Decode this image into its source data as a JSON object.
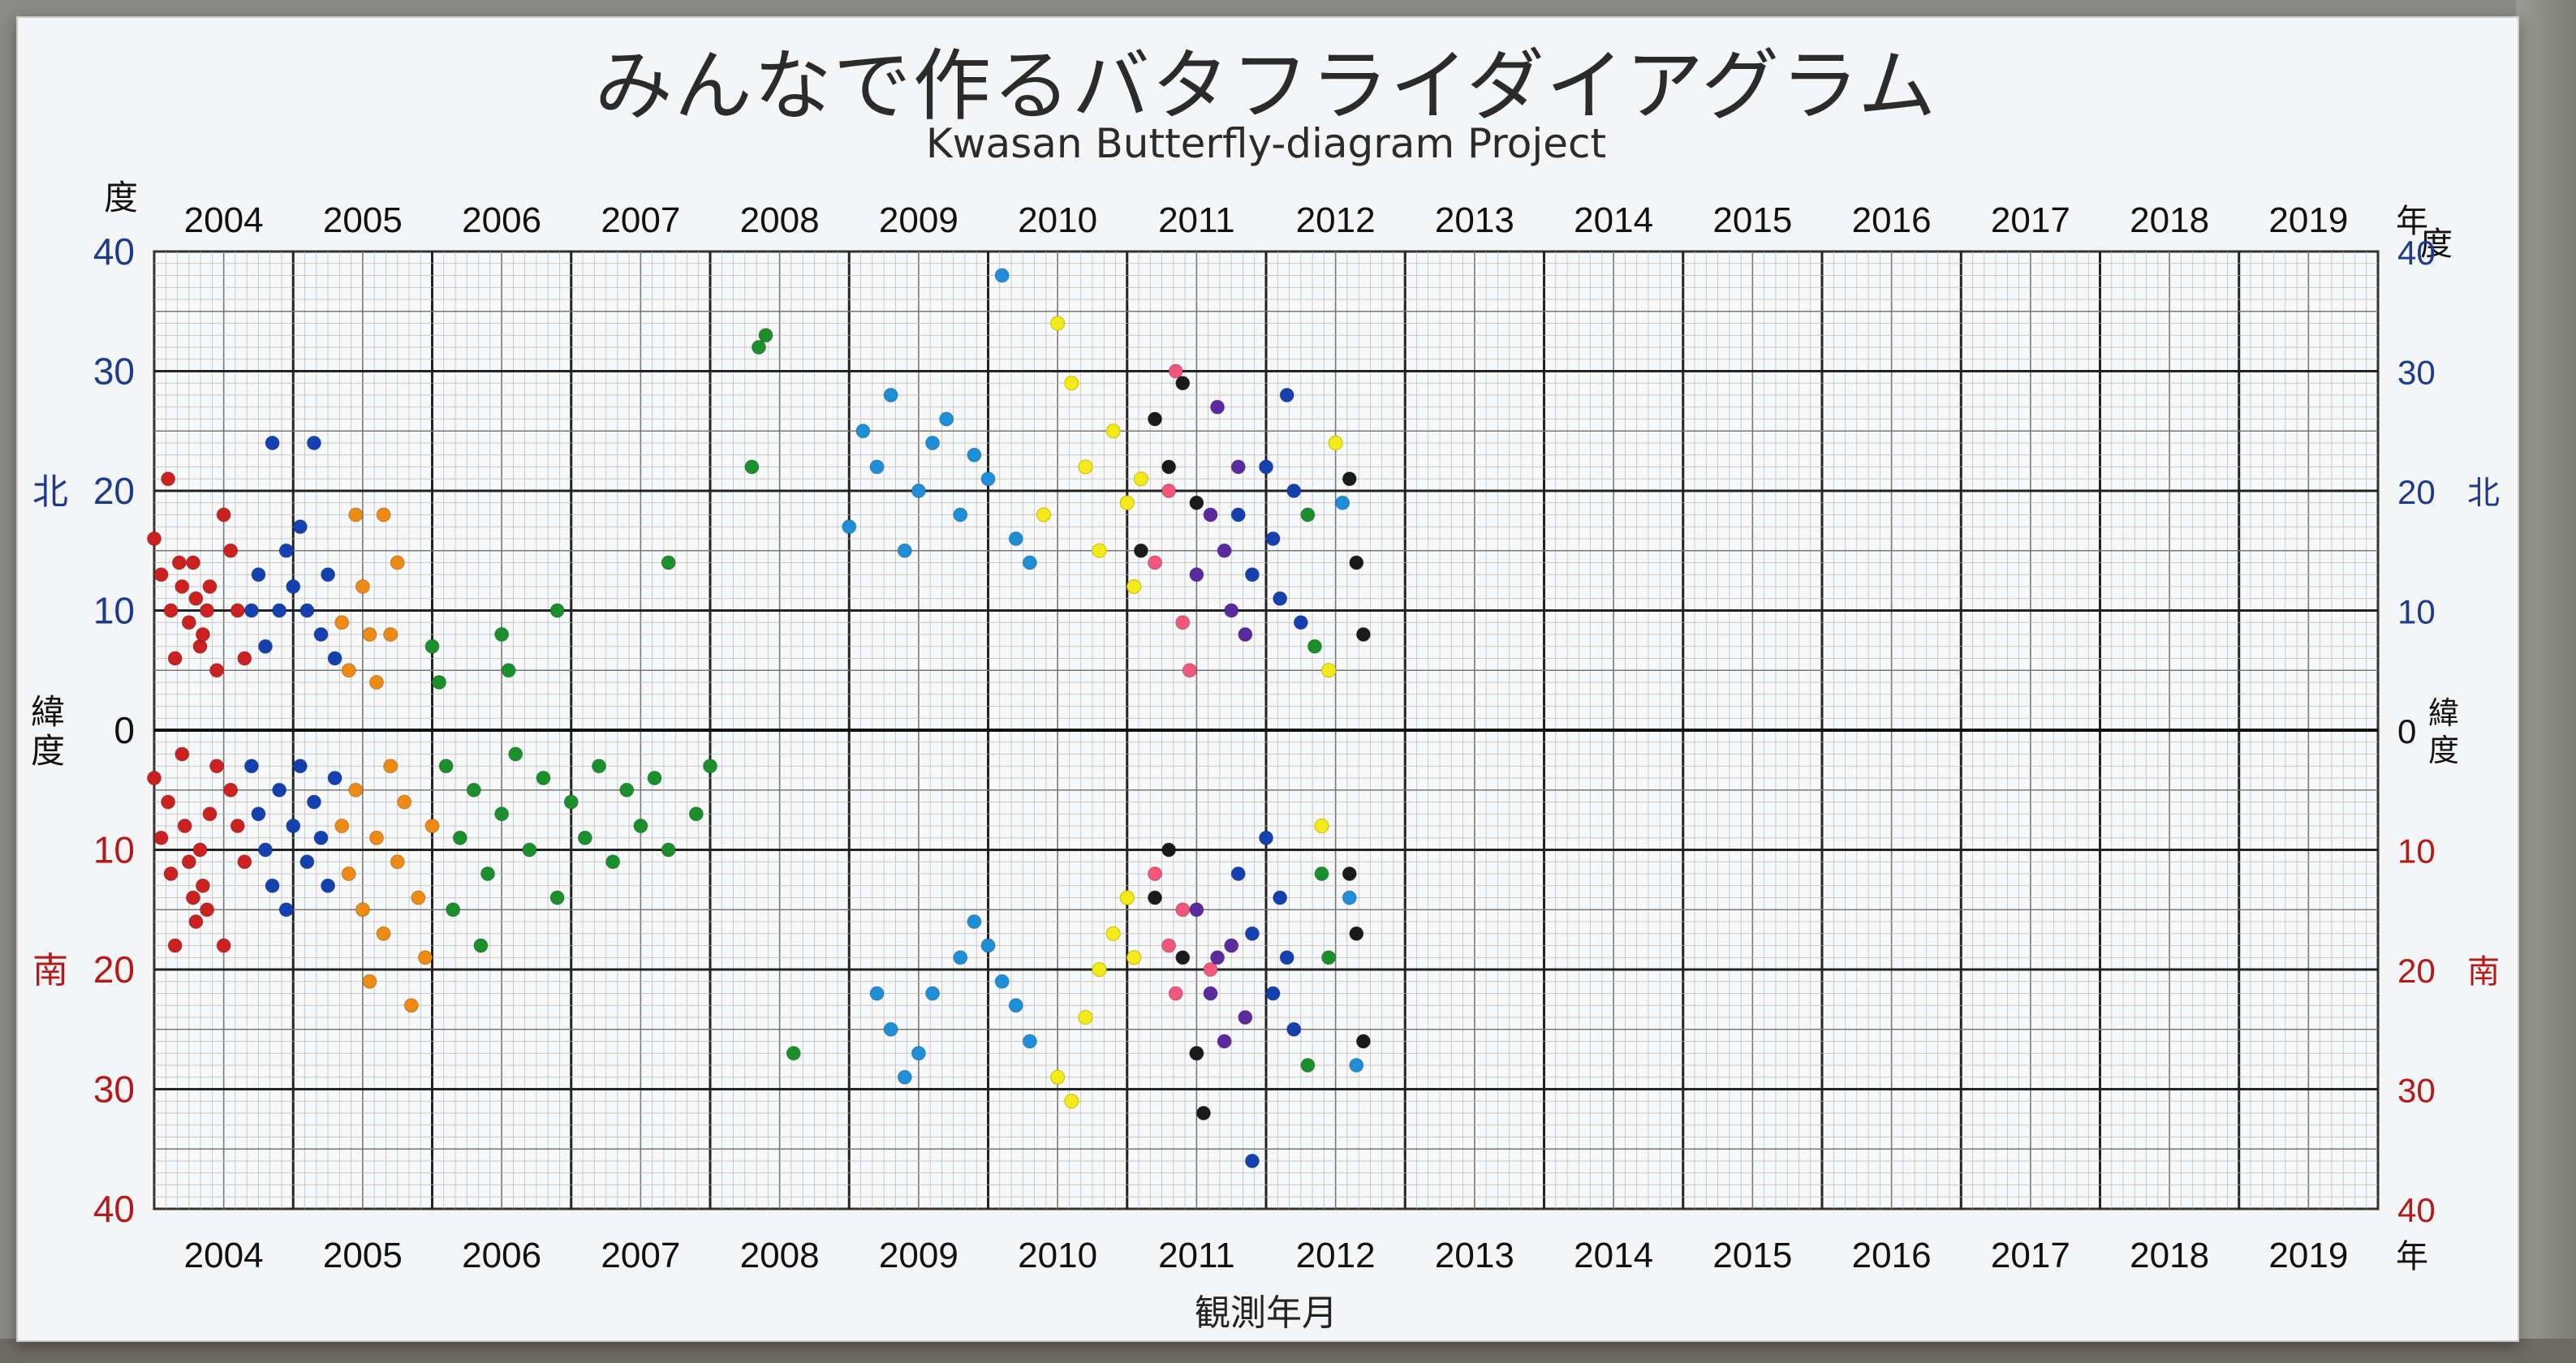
{
  "title": "みんなで作るバタフライダイアグラム",
  "subtitle": "Kwasan Butterfly-diagram Project",
  "xlabel": "観測年月",
  "unit_degree": "度",
  "unit_year": "年",
  "latitude_label": "緯度",
  "north_label": "北",
  "south_label": "南",
  "colors": {
    "north_axis": "#1e3a8a",
    "south_axis": "#b31b1b",
    "grid": "#b8b8b8",
    "series": {
      "red": "#cc2121",
      "darkblue": "#1440b0",
      "orange": "#ef8a12",
      "green": "#1a8f2c",
      "cyan": "#1e8fd6",
      "yellow": "#f2ea1a",
      "pink": "#f0577a",
      "purple": "#5b2a9e",
      "black": "#1a1a1a"
    }
  },
  "chart_data": {
    "type": "scatter",
    "title": "みんなで作るバタフライダイアグラム",
    "subtitle": "Kwasan Butterfly-diagram Project",
    "xlabel": "観測年月",
    "ylabel": "緯度",
    "x_unit": "年",
    "y_unit": "度",
    "xlim": [
      2004,
      2020
    ],
    "ylim": [
      -40,
      40
    ],
    "x_ticks": [
      "2004",
      "2005",
      "2006",
      "2007",
      "2008",
      "2009",
      "2010",
      "2011",
      "2012",
      "2013",
      "2014",
      "2015",
      "2016",
      "2017",
      "2018",
      "2019"
    ],
    "y_ticks": [
      40,
      30,
      20,
      10,
      0,
      10,
      20,
      30,
      40
    ],
    "north_tick_side": "positive latitude (北)",
    "south_tick_side": "negative latitude (南)",
    "grid": true,
    "series": [
      {
        "color": "red",
        "points": [
          [
            2004.0,
            16
          ],
          [
            2004.1,
            21
          ],
          [
            2004.05,
            13
          ],
          [
            2004.12,
            10
          ],
          [
            2004.15,
            6
          ],
          [
            2004.18,
            14
          ],
          [
            2004.2,
            12
          ],
          [
            2004.25,
            9
          ],
          [
            2004.28,
            14
          ],
          [
            2004.3,
            11
          ],
          [
            2004.33,
            7
          ],
          [
            2004.35,
            8
          ],
          [
            2004.38,
            10
          ],
          [
            2004.4,
            12
          ],
          [
            2004.45,
            5
          ],
          [
            2004.5,
            18
          ],
          [
            2004.55,
            15
          ],
          [
            2004.6,
            10
          ],
          [
            2004.65,
            6
          ],
          [
            2004.0,
            -4
          ],
          [
            2004.05,
            -9
          ],
          [
            2004.1,
            -6
          ],
          [
            2004.12,
            -12
          ],
          [
            2004.15,
            -18
          ],
          [
            2004.2,
            -2
          ],
          [
            2004.22,
            -8
          ],
          [
            2004.25,
            -11
          ],
          [
            2004.28,
            -14
          ],
          [
            2004.3,
            -16
          ],
          [
            2004.33,
            -10
          ],
          [
            2004.35,
            -13
          ],
          [
            2004.38,
            -15
          ],
          [
            2004.4,
            -7
          ],
          [
            2004.45,
            -3
          ],
          [
            2004.5,
            -18
          ],
          [
            2004.55,
            -5
          ],
          [
            2004.6,
            -8
          ],
          [
            2004.65,
            -11
          ]
        ]
      },
      {
        "color": "darkblue",
        "points": [
          [
            2004.7,
            10
          ],
          [
            2004.75,
            13
          ],
          [
            2004.8,
            7
          ],
          [
            2004.85,
            24
          ],
          [
            2004.9,
            10
          ],
          [
            2004.95,
            15
          ],
          [
            2005.0,
            12
          ],
          [
            2005.05,
            17
          ],
          [
            2005.1,
            10
          ],
          [
            2005.15,
            24
          ],
          [
            2005.2,
            8
          ],
          [
            2005.25,
            13
          ],
          [
            2005.3,
            6
          ],
          [
            2004.7,
            -3
          ],
          [
            2004.75,
            -7
          ],
          [
            2004.8,
            -10
          ],
          [
            2004.85,
            -13
          ],
          [
            2004.9,
            -5
          ],
          [
            2004.95,
            -15
          ],
          [
            2005.0,
            -8
          ],
          [
            2005.05,
            -3
          ],
          [
            2005.1,
            -11
          ],
          [
            2005.15,
            -6
          ],
          [
            2005.2,
            -9
          ],
          [
            2005.25,
            -13
          ],
          [
            2005.3,
            -4
          ]
        ]
      },
      {
        "color": "orange",
        "points": [
          [
            2005.35,
            9
          ],
          [
            2005.4,
            5
          ],
          [
            2005.45,
            18
          ],
          [
            2005.5,
            12
          ],
          [
            2005.55,
            8
          ],
          [
            2005.6,
            4
          ],
          [
            2005.65,
            18
          ],
          [
            2005.7,
            8
          ],
          [
            2005.75,
            14
          ],
          [
            2005.35,
            -8
          ],
          [
            2005.4,
            -12
          ],
          [
            2005.45,
            -5
          ],
          [
            2005.5,
            -15
          ],
          [
            2005.55,
            -21
          ],
          [
            2005.6,
            -9
          ],
          [
            2005.65,
            -17
          ],
          [
            2005.7,
            -3
          ],
          [
            2005.75,
            -11
          ],
          [
            2005.8,
            -6
          ],
          [
            2005.85,
            -23
          ],
          [
            2005.9,
            -14
          ],
          [
            2005.95,
            -19
          ],
          [
            2006.0,
            -8
          ]
        ]
      },
      {
        "color": "green",
        "points": [
          [
            2006.0,
            7
          ],
          [
            2006.05,
            4
          ],
          [
            2006.5,
            8
          ],
          [
            2006.55,
            5
          ],
          [
            2006.9,
            10
          ],
          [
            2007.7,
            14
          ],
          [
            2008.3,
            22
          ],
          [
            2008.35,
            32
          ],
          [
            2008.4,
            33
          ],
          [
            2006.1,
            -3
          ],
          [
            2006.2,
            -9
          ],
          [
            2006.3,
            -5
          ],
          [
            2006.4,
            -12
          ],
          [
            2006.5,
            -7
          ],
          [
            2006.6,
            -2
          ],
          [
            2006.7,
            -10
          ],
          [
            2006.8,
            -4
          ],
          [
            2006.9,
            -14
          ],
          [
            2007.0,
            -6
          ],
          [
            2007.1,
            -9
          ],
          [
            2007.2,
            -3
          ],
          [
            2007.3,
            -11
          ],
          [
            2007.4,
            -5
          ],
          [
            2007.5,
            -8
          ],
          [
            2007.6,
            -4
          ],
          [
            2007.7,
            -10
          ],
          [
            2007.9,
            -7
          ],
          [
            2008.0,
            -3
          ],
          [
            2008.6,
            -27
          ],
          [
            2006.15,
            -15
          ],
          [
            2006.35,
            -18
          ]
        ]
      },
      {
        "color": "cyan",
        "points": [
          [
            2009.0,
            17
          ],
          [
            2009.1,
            25
          ],
          [
            2009.2,
            22
          ],
          [
            2009.3,
            28
          ],
          [
            2009.4,
            15
          ],
          [
            2009.5,
            20
          ],
          [
            2009.6,
            24
          ],
          [
            2009.7,
            26
          ],
          [
            2009.8,
            18
          ],
          [
            2009.9,
            23
          ],
          [
            2010.0,
            21
          ],
          [
            2010.1,
            38
          ],
          [
            2010.2,
            16
          ],
          [
            2010.3,
            14
          ],
          [
            2009.2,
            -22
          ],
          [
            2009.3,
            -25
          ],
          [
            2009.4,
            -29
          ],
          [
            2009.5,
            -27
          ],
          [
            2009.6,
            -22
          ],
          [
            2009.8,
            -19
          ],
          [
            2009.9,
            -16
          ],
          [
            2010.0,
            -18
          ],
          [
            2010.1,
            -21
          ],
          [
            2010.2,
            -23
          ],
          [
            2010.3,
            -26
          ]
        ]
      },
      {
        "color": "yellow",
        "points": [
          [
            2010.4,
            18
          ],
          [
            2010.5,
            34
          ],
          [
            2010.6,
            29
          ],
          [
            2010.7,
            22
          ],
          [
            2010.8,
            15
          ],
          [
            2010.9,
            25
          ],
          [
            2011.0,
            19
          ],
          [
            2011.05,
            12
          ],
          [
            2011.1,
            21
          ],
          [
            2010.5,
            -29
          ],
          [
            2010.6,
            -31
          ],
          [
            2010.7,
            -24
          ],
          [
            2010.8,
            -20
          ],
          [
            2010.9,
            -17
          ],
          [
            2011.0,
            -14
          ],
          [
            2011.05,
            -19
          ],
          [
            2012.4,
            -8
          ],
          [
            2012.45,
            5
          ],
          [
            2012.5,
            24
          ]
        ]
      },
      {
        "color": "pink",
        "points": [
          [
            2011.2,
            14
          ],
          [
            2011.3,
            20
          ],
          [
            2011.35,
            30
          ],
          [
            2011.4,
            9
          ],
          [
            2011.45,
            5
          ],
          [
            2011.2,
            -12
          ],
          [
            2011.3,
            -18
          ],
          [
            2011.35,
            -22
          ],
          [
            2011.4,
            -15
          ],
          [
            2011.5,
            -27
          ],
          [
            2011.6,
            -20
          ]
        ]
      },
      {
        "color": "purple",
        "points": [
          [
            2011.5,
            13
          ],
          [
            2011.6,
            18
          ],
          [
            2011.65,
            27
          ],
          [
            2011.7,
            15
          ],
          [
            2011.75,
            10
          ],
          [
            2011.8,
            22
          ],
          [
            2011.85,
            8
          ],
          [
            2011.5,
            -15
          ],
          [
            2011.6,
            -22
          ],
          [
            2011.65,
            -19
          ],
          [
            2011.7,
            -26
          ],
          [
            2011.75,
            -18
          ],
          [
            2011.85,
            -24
          ]
        ]
      },
      {
        "color": "black",
        "points": [
          [
            2011.1,
            15
          ],
          [
            2011.2,
            26
          ],
          [
            2011.3,
            22
          ],
          [
            2011.4,
            29
          ],
          [
            2011.5,
            19
          ],
          [
            2012.6,
            21
          ],
          [
            2012.65,
            14
          ],
          [
            2012.7,
            8
          ],
          [
            2011.2,
            -14
          ],
          [
            2011.3,
            -10
          ],
          [
            2011.4,
            -19
          ],
          [
            2011.5,
            -27
          ],
          [
            2011.55,
            -32
          ],
          [
            2012.6,
            -12
          ],
          [
            2012.65,
            -17
          ],
          [
            2012.7,
            -26
          ]
        ]
      },
      {
        "color": "darkblue",
        "points": [
          [
            2011.8,
            18
          ],
          [
            2011.9,
            13
          ],
          [
            2012.0,
            22
          ],
          [
            2012.05,
            16
          ],
          [
            2012.1,
            11
          ],
          [
            2012.15,
            28
          ],
          [
            2012.2,
            20
          ],
          [
            2012.25,
            9
          ],
          [
            2011.8,
            -12
          ],
          [
            2011.9,
            -17
          ],
          [
            2012.0,
            -9
          ],
          [
            2012.05,
            -22
          ],
          [
            2012.1,
            -14
          ],
          [
            2012.15,
            -19
          ],
          [
            2012.2,
            -25
          ],
          [
            2011.9,
            -36
          ]
        ]
      },
      {
        "color": "green",
        "points": [
          [
            2012.3,
            18
          ],
          [
            2012.35,
            7
          ],
          [
            2012.4,
            -12
          ],
          [
            2012.45,
            -19
          ],
          [
            2012.3,
            -28
          ]
        ]
      },
      {
        "color": "cyan",
        "points": [
          [
            2012.55,
            19
          ],
          [
            2012.6,
            -14
          ],
          [
            2012.65,
            -28
          ]
        ]
      }
    ]
  }
}
